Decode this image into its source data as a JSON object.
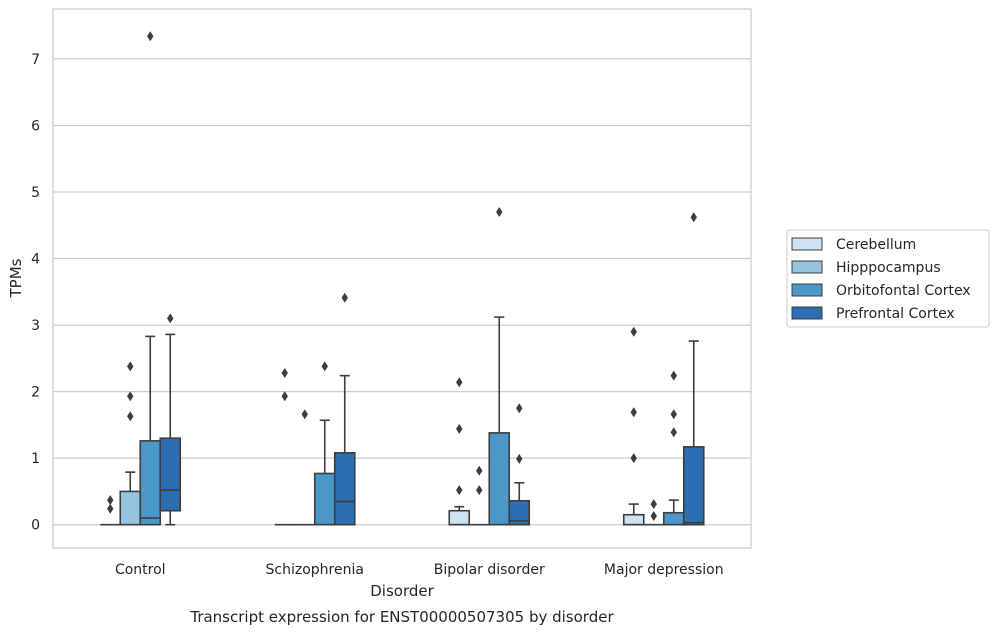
{
  "chart_data": {
    "type": "box",
    "title": "Transcript expression for ENST00000507305 by disorder",
    "xlabel": "Disorder",
    "ylabel": "TPMs",
    "ylim": [
      -0.35,
      7.75
    ],
    "yticks": [
      0,
      1,
      2,
      3,
      4,
      5,
      6,
      7
    ],
    "grid": "horizontal",
    "legend_position": "right",
    "categories": [
      "Control",
      "Schizophrenia",
      "Bipolar disorder",
      "Major depression"
    ],
    "series": [
      {
        "name": "Cerebellum",
        "color": "#d0e1f2",
        "boxes": [
          {
            "whislo": 0,
            "q1": 0,
            "med": 0,
            "q3": 0,
            "whishi": 0,
            "fliers": [
              0.37,
              0.24
            ]
          },
          {
            "whislo": 0,
            "q1": 0,
            "med": 0,
            "q3": 0,
            "whishi": 0,
            "fliers": [
              2.28,
              1.93
            ]
          },
          {
            "whislo": 0,
            "q1": 0,
            "med": 0,
            "q3": 0.21,
            "whishi": 0.27,
            "fliers": [
              2.14,
              1.44,
              0.52
            ]
          },
          {
            "whislo": 0,
            "q1": 0,
            "med": 0,
            "q3": 0.15,
            "whishi": 0.31,
            "fliers": [
              2.9,
              1.69,
              1.0
            ]
          }
        ]
      },
      {
        "name": "Hipppocampus",
        "color": "#94c4df",
        "boxes": [
          {
            "whislo": 0,
            "q1": 0,
            "med": 0,
            "q3": 0.5,
            "whishi": 0.79,
            "fliers": [
              2.38,
              1.93,
              1.63
            ]
          },
          {
            "whislo": 0,
            "q1": 0,
            "med": 0,
            "q3": 0,
            "whishi": 0,
            "fliers": [
              1.66
            ]
          },
          {
            "whislo": 0,
            "q1": 0,
            "med": 0,
            "q3": 0,
            "whishi": 0,
            "fliers": [
              0.81,
              0.52
            ]
          },
          {
            "whislo": 0,
            "q1": 0,
            "med": 0,
            "q3": 0,
            "whishi": 0,
            "fliers": [
              0.31,
              0.13
            ]
          }
        ]
      },
      {
        "name": "Orbitofontal Cortex",
        "color": "#4a98c9",
        "boxes": [
          {
            "whislo": 0,
            "q1": 0,
            "med": 0.1,
            "q3": 1.26,
            "whishi": 2.83,
            "fliers": [
              7.34
            ]
          },
          {
            "whislo": 0,
            "q1": 0,
            "med": 0,
            "q3": 0.77,
            "whishi": 1.57,
            "fliers": [
              2.38
            ]
          },
          {
            "whislo": 0,
            "q1": 0,
            "med": 0,
            "q3": 1.38,
            "whishi": 3.12,
            "fliers": [
              4.7
            ]
          },
          {
            "whislo": 0,
            "q1": 0,
            "med": 0,
            "q3": 0.18,
            "whishi": 0.37,
            "fliers": [
              2.24,
              1.66,
              1.39
            ]
          }
        ]
      },
      {
        "name": "Prefrontal Cortex",
        "color": "#2b6fb0",
        "boxes": [
          {
            "whislo": 0,
            "q1": 0.21,
            "med": 0.52,
            "q3": 1.3,
            "whishi": 2.86,
            "fliers": [
              3.1
            ]
          },
          {
            "whislo": 0,
            "q1": 0,
            "med": 0.35,
            "q3": 1.08,
            "whishi": 2.24,
            "fliers": [
              3.41
            ]
          },
          {
            "whislo": 0,
            "q1": 0,
            "med": 0.06,
            "q3": 0.36,
            "whishi": 0.63,
            "fliers": [
              1.75,
              0.99
            ]
          },
          {
            "whislo": 0,
            "q1": 0,
            "med": 0.03,
            "q3": 1.17,
            "whishi": 2.76,
            "fliers": [
              4.62
            ]
          }
        ]
      }
    ]
  }
}
